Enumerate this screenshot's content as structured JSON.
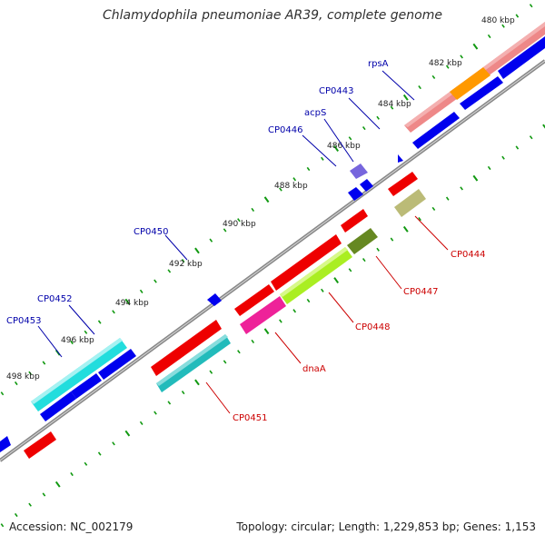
{
  "header": {
    "title": "Chlamydophila pneumoniae AR39, complete genome"
  },
  "footer": {
    "accession": "Accession: NC_002179",
    "stats": "Topology: circular; Length: 1,229,853 bp; Genes: 1,153"
  },
  "colors": {
    "forward_label": "#0000aa",
    "reverse_label": "#cc0000",
    "tick_label": "#222222",
    "tick_dots": "#119911",
    "backbone": "#888888"
  },
  "ticks": [
    {
      "label": "480 kbp"
    },
    {
      "label": "482 kbp"
    },
    {
      "label": "484 kbp"
    },
    {
      "label": "486 kbp"
    },
    {
      "label": "488 kbp"
    },
    {
      "label": "490 kbp"
    },
    {
      "label": "492 kbp"
    },
    {
      "label": "494 kbp"
    },
    {
      "label": "496 kbp"
    },
    {
      "label": "498 kbp"
    }
  ],
  "gene_labels_forward": [
    {
      "label": "rpsA"
    },
    {
      "label": "CP0443"
    },
    {
      "label": "acpS"
    },
    {
      "label": "CP0446"
    },
    {
      "label": "CP0450"
    },
    {
      "label": "CP0452"
    },
    {
      "label": "CP0453"
    }
  ],
  "gene_labels_reverse": [
    {
      "label": "CP0444"
    },
    {
      "label": "CP0447"
    },
    {
      "label": "CP0448"
    },
    {
      "label": "dnaA"
    },
    {
      "label": "CP0451"
    }
  ]
}
